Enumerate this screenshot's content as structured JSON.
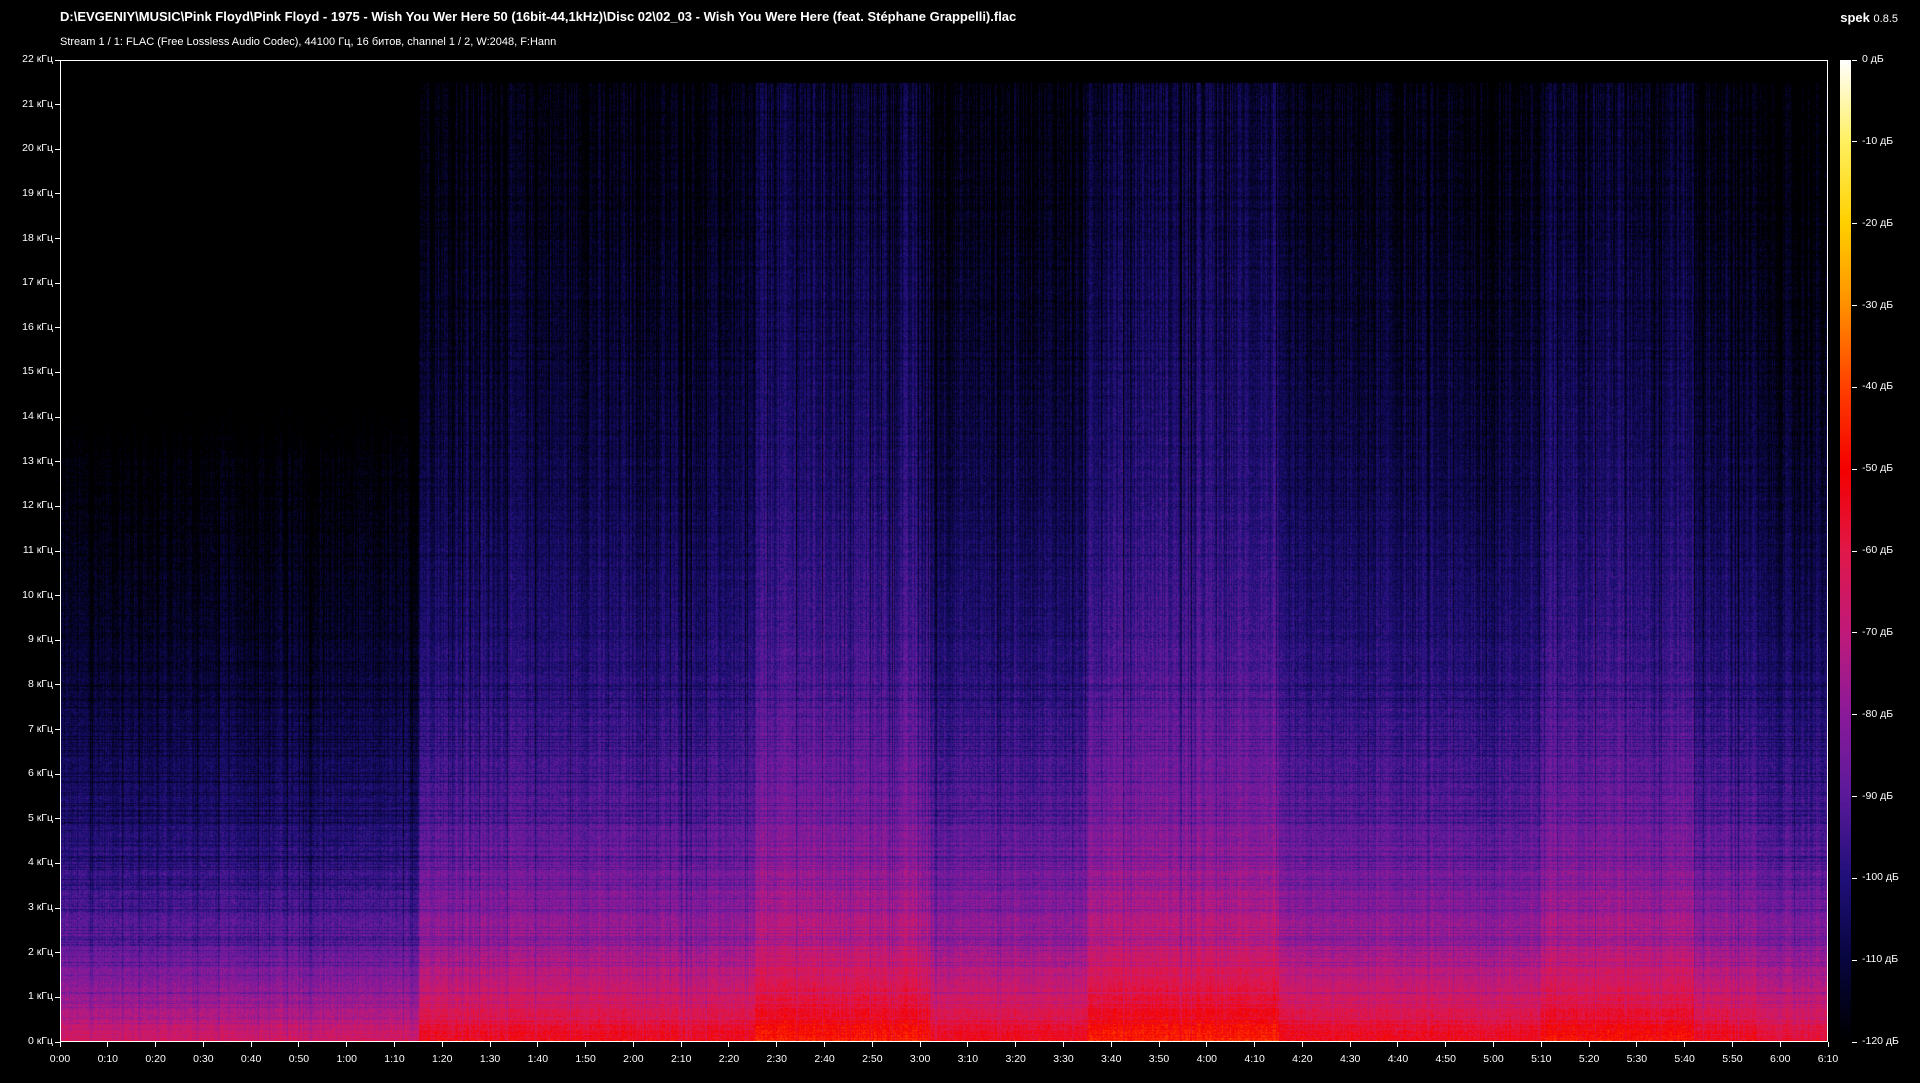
{
  "header": {
    "file_path": "D:\\EVGENIY\\MUSIC\\Pink Floyd\\Pink Floyd - 1975 - Wish You Wer Here 50 (16bit-44,1kHz)\\Disc 02\\02_03 - Wish You Were Here (feat. Stéphane Grappelli).flac",
    "stream_info": "Stream 1 / 1: FLAC (Free Lossless Audio Codec), 44100 Гц, 16 битов, channel 1 / 2, W:2048, F:Hann",
    "app_name": "spek",
    "app_version": "0.8.5"
  },
  "chart_data": {
    "type": "heatmap",
    "title": "",
    "x_axis": {
      "unit": "time (m:ss)",
      "range": [
        "0:00",
        "6:10"
      ],
      "tick_labels": [
        "0:00",
        "0:10",
        "0:20",
        "0:30",
        "0:40",
        "0:50",
        "1:00",
        "1:10",
        "1:20",
        "1:30",
        "1:40",
        "1:50",
        "2:00",
        "2:10",
        "2:20",
        "2:30",
        "2:40",
        "2:50",
        "3:00",
        "3:10",
        "3:20",
        "3:30",
        "3:40",
        "3:50",
        "4:00",
        "4:10",
        "4:20",
        "4:30",
        "4:40",
        "4:50",
        "5:00",
        "5:10",
        "5:20",
        "5:30",
        "5:40",
        "5:50",
        "6:00",
        "6:10"
      ]
    },
    "y_axis": {
      "unit": "kHz",
      "range": [
        0,
        22
      ],
      "tick_labels": [
        "0 кГц",
        "1 кГц",
        "2 кГц",
        "3 кГц",
        "4 кГц",
        "5 кГц",
        "6 кГц",
        "7 кГц",
        "8 кГц",
        "9 кГц",
        "10 кГц",
        "11 кГц",
        "12 кГц",
        "13 кГц",
        "14 кГц",
        "15 кГц",
        "16 кГц",
        "17 кГц",
        "18 кГц",
        "19 кГц",
        "20 кГц",
        "21 кГц",
        "22 кГц"
      ]
    },
    "color_scale": {
      "range_db": [
        -120,
        0
      ],
      "tick_labels": [
        "0 дБ",
        "-10 дБ",
        "-20 дБ",
        "-30 дБ",
        "-40 дБ",
        "-50 дБ",
        "-60 дБ",
        "-70 дБ",
        "-80 дБ",
        "-90 дБ",
        "-100 дБ",
        "-110 дБ",
        "-120 дБ"
      ],
      "colors": [
        "#000000",
        "#08063f",
        "#20107a",
        "#5a1a9a",
        "#8a1a9a",
        "#c01a7a",
        "#e0184a",
        "#f40000",
        "#ff4000",
        "#ff9000",
        "#ffd000",
        "#fff060",
        "#ffffff"
      ]
    },
    "grid": false,
    "legend": "right (color bar)"
  }
}
